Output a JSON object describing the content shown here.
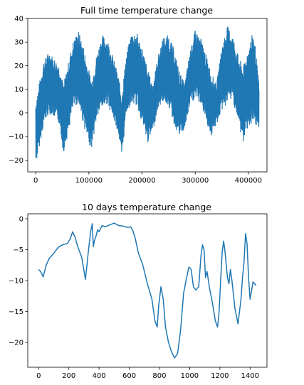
{
  "chart_data": [
    {
      "type": "line",
      "title": "Full time temperature change",
      "xlim": [
        -15000,
        435000
      ],
      "ylim": [
        -25,
        40
      ],
      "xticks": [
        0,
        100000,
        200000,
        300000,
        400000
      ],
      "xtick_labels": [
        "0",
        "100000",
        "200000",
        "300000",
        "400000"
      ],
      "yticks": [
        -20,
        -10,
        0,
        10,
        20,
        30,
        40
      ],
      "ytick_labels": [
        "−20",
        "−10",
        "0",
        "10",
        "20",
        "30",
        "40"
      ],
      "grid": false,
      "series": [
        {
          "color": "#1f77b4",
          "envelope": {
            "x": [
              0,
              15000,
              25000,
              35000,
              45000,
              52000,
              62000,
              70000,
              80000,
              90000,
              98000,
              105000,
              115000,
              125000,
              135000,
              145000,
              155000,
              162000,
              170000,
              180000,
              190000,
              200000,
              210000,
              220000,
              230000,
              240000,
              250000,
              260000,
              270000,
              280000,
              290000,
              300000,
              310000,
              320000,
              330000,
              340000,
              350000,
              360000,
              370000,
              380000,
              390000,
              400000,
              410000,
              420000
            ],
            "low": [
              -22,
              -5,
              0,
              -2,
              -5,
              -17,
              -8,
              2,
              4,
              -5,
              -12,
              -15,
              -2,
              2,
              4,
              -2,
              -8,
              -20,
              0,
              4,
              3,
              -4,
              -13,
              -8,
              2,
              5,
              3,
              -5,
              -10,
              -7,
              3,
              6,
              4,
              -3,
              -10,
              -5,
              1,
              4,
              6,
              -3,
              -13,
              -5,
              -7,
              -6
            ],
            "high": [
              5,
              22,
              26,
              23,
              20,
              12,
              22,
              30,
              35,
              28,
              20,
              14,
              25,
              33,
              31,
              24,
              16,
              8,
              24,
              34,
              34,
              28,
              19,
              12,
              24,
              32,
              33,
              27,
              18,
              12,
              26,
              35,
              32,
              25,
              17,
              12,
              28,
              37,
              33,
              25,
              19,
              28,
              35,
              12
            ]
          }
        }
      ]
    },
    {
      "type": "line",
      "title": "10 days temperature change",
      "xlim": [
        -72,
        1512
      ],
      "ylim": [
        -24,
        0.8
      ],
      "xticks": [
        0,
        200,
        400,
        600,
        800,
        1000,
        1200,
        1400
      ],
      "xtick_labels": [
        "0",
        "200",
        "400",
        "600",
        "800",
        "1000",
        "1200",
        "1400"
      ],
      "yticks": [
        -20,
        -15,
        -10,
        -5,
        0
      ],
      "ytick_labels": [
        "−20",
        "−15",
        "−10",
        "−5",
        "0"
      ],
      "grid": false,
      "series": [
        {
          "color": "#1f77b4",
          "x": [
            0,
            15,
            30,
            50,
            70,
            100,
            130,
            160,
            190,
            210,
            225,
            240,
            260,
            285,
            310,
            330,
            345,
            355,
            362,
            370,
            380,
            390,
            400,
            420,
            440,
            470,
            500,
            530,
            560,
            590,
            610,
            625,
            640,
            660,
            690,
            720,
            750,
            770,
            785,
            795,
            810,
            825,
            840,
            860,
            880,
            890,
            900,
            920,
            940,
            960,
            980,
            995,
            1010,
            1025,
            1040,
            1060,
            1075,
            1085,
            1095,
            1105,
            1115,
            1130,
            1150,
            1170,
            1185,
            1195,
            1205,
            1215,
            1225,
            1235,
            1250,
            1260,
            1270,
            1280,
            1300,
            1320,
            1340,
            1350,
            1360,
            1370,
            1380,
            1390,
            1400,
            1420,
            1440
          ],
          "y": [
            -8.2,
            -8.6,
            -9.4,
            -7.5,
            -6.4,
            -5.6,
            -4.6,
            -4.2,
            -4,
            -3.2,
            -2.1,
            -2.9,
            -4.6,
            -6.2,
            -9.8,
            -5.1,
            -2,
            -0.8,
            -4.5,
            -3.5,
            -2.8,
            -1.8,
            -2.1,
            -1.1,
            -1.3,
            -1,
            -0.7,
            -1.1,
            -1.2,
            -1.4,
            -1.3,
            -2,
            -3.2,
            -5.5,
            -7.5,
            -10.5,
            -13,
            -16.5,
            -17.5,
            -14,
            -11,
            -13,
            -17.5,
            -20,
            -21.5,
            -22,
            -22.5,
            -21.8,
            -18,
            -12,
            -9.5,
            -7.8,
            -8.2,
            -11,
            -11.5,
            -11,
            -6,
            -4.2,
            -5,
            -9.5,
            -8.5,
            -11,
            -13.5,
            -16.5,
            -17.5,
            -15,
            -10,
            -5.5,
            -3.6,
            -5.5,
            -9.5,
            -10.5,
            -8.2,
            -10,
            -14.5,
            -17,
            -13,
            -9.5,
            -7,
            -2.4,
            -4,
            -9.5,
            -13,
            -10.2,
            -10.8
          ]
        }
      ]
    }
  ]
}
